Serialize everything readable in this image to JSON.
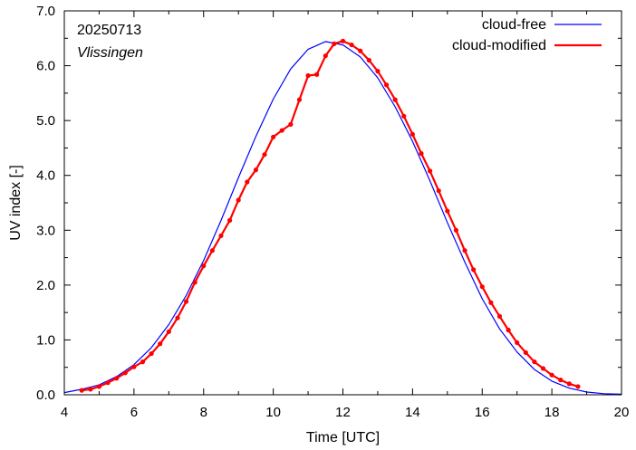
{
  "chart_data": {
    "type": "line",
    "xlabel": "Time  [UTC]",
    "ylabel": "UV index  [-]",
    "xlim": [
      4,
      20
    ],
    "ylim": [
      0.0,
      7.0
    ],
    "xticks": [
      4,
      6,
      8,
      10,
      12,
      14,
      16,
      18,
      20
    ],
    "xtick_labels": [
      "4",
      "6",
      "8",
      "10",
      "12",
      "14",
      "16",
      "18",
      "20"
    ],
    "yticks": [
      0.0,
      1.0,
      2.0,
      3.0,
      4.0,
      5.0,
      6.0,
      7.0
    ],
    "ytick_labels": [
      "0.0",
      "1.0",
      "2.0",
      "3.0",
      "4.0",
      "5.0",
      "6.0",
      "7.0"
    ],
    "grid": false,
    "legend_position": "top-right",
    "annotations": {
      "date": "20250713",
      "location": "Vlissingen"
    },
    "series": [
      {
        "name": "cloud-free",
        "color": "#0000ff",
        "style": "line",
        "x": [
          4.0,
          4.5,
          5.0,
          5.5,
          6.0,
          6.5,
          7.0,
          7.5,
          8.0,
          8.5,
          9.0,
          9.5,
          10.0,
          10.5,
          11.0,
          11.5,
          12.0,
          12.5,
          13.0,
          13.5,
          14.0,
          14.5,
          15.0,
          15.5,
          16.0,
          16.5,
          17.0,
          17.5,
          18.0,
          18.5,
          19.0,
          19.5,
          20.0
        ],
        "y": [
          0.04,
          0.1,
          0.18,
          0.33,
          0.55,
          0.86,
          1.28,
          1.81,
          2.45,
          3.18,
          3.96,
          4.71,
          5.39,
          5.94,
          6.3,
          6.44,
          6.38,
          6.16,
          5.78,
          5.25,
          4.62,
          3.9,
          3.14,
          2.42,
          1.75,
          1.2,
          0.78,
          0.46,
          0.25,
          0.12,
          0.05,
          0.02,
          0.01
        ]
      },
      {
        "name": "cloud-modified",
        "color": "#ff0000",
        "style": "line+markers",
        "x": [
          4.5,
          4.75,
          5.0,
          5.25,
          5.5,
          5.75,
          6.0,
          6.25,
          6.5,
          6.75,
          7.0,
          7.25,
          7.5,
          7.75,
          8.0,
          8.25,
          8.5,
          8.75,
          9.0,
          9.25,
          9.5,
          9.75,
          10.0,
          10.25,
          10.5,
          10.75,
          11.0,
          11.25,
          11.5,
          11.75,
          12.0,
          12.25,
          12.5,
          12.75,
          13.0,
          13.25,
          13.5,
          13.75,
          14.0,
          14.25,
          14.5,
          14.75,
          15.0,
          15.25,
          15.5,
          15.75,
          16.0,
          16.25,
          16.5,
          16.75,
          17.0,
          17.25,
          17.5,
          17.75,
          18.0,
          18.25,
          18.5,
          18.75
        ],
        "y": [
          0.08,
          0.1,
          0.15,
          0.22,
          0.3,
          0.4,
          0.51,
          0.6,
          0.75,
          0.93,
          1.15,
          1.4,
          1.7,
          2.05,
          2.35,
          2.63,
          2.9,
          3.18,
          3.55,
          3.88,
          4.1,
          4.38,
          4.7,
          4.82,
          4.93,
          5.38,
          5.82,
          5.84,
          6.18,
          6.4,
          6.45,
          6.38,
          6.27,
          6.1,
          5.9,
          5.65,
          5.38,
          5.08,
          4.75,
          4.4,
          4.08,
          3.72,
          3.35,
          3.0,
          2.63,
          2.28,
          1.97,
          1.68,
          1.43,
          1.18,
          0.95,
          0.77,
          0.6,
          0.48,
          0.36,
          0.27,
          0.2,
          0.15
        ]
      }
    ]
  }
}
